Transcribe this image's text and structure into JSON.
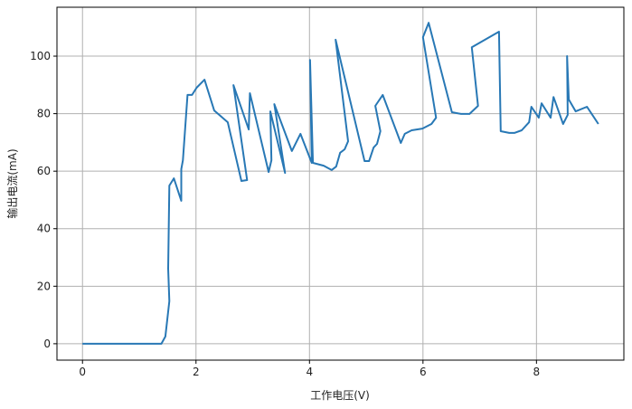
{
  "chart_data": {
    "type": "line",
    "title": "",
    "xlabel": "工作电压(V)",
    "ylabel": "输出电流(mA)",
    "xlim": [
      -0.45,
      9.54
    ],
    "ylim": [
      -5.7,
      117
    ],
    "xticks": [
      0,
      2,
      4,
      6,
      8
    ],
    "yticks": [
      0,
      20,
      40,
      60,
      80,
      100
    ],
    "grid": true,
    "line_color": "#2878b5",
    "grid_color": "#b0b0b0",
    "series": [
      {
        "x": [
          0,
          1.39,
          1.46,
          1.53,
          1.51,
          1.53,
          1.61,
          1.74,
          1.74,
          1.77,
          1.85,
          1.93,
          2.01,
          2.15,
          2.32,
          2.56,
          2.8,
          2.9,
          2.66,
          2.93,
          2.95,
          3.28,
          3.33,
          3.31,
          3.57,
          3.38,
          3.69,
          3.84,
          4.04,
          4.01,
          4.06,
          4.25,
          4.39,
          4.47,
          4.54,
          4.62,
          4.68,
          4.46,
          4.97,
          5.05,
          5.13,
          5.19,
          5.25,
          5.16,
          5.29,
          5.61,
          5.68,
          5.8,
          5.99,
          6.15,
          6.23,
          6.0,
          6.1,
          6.51,
          6.67,
          6.82,
          6.97,
          6.86,
          7.34,
          7.37,
          7.52,
          7.61,
          7.74,
          7.87,
          7.91,
          8.04,
          8.09,
          8.25,
          8.3,
          8.47,
          8.55,
          8.54,
          8.57,
          8.69,
          8.89,
          9.09
        ],
        "y": [
          0,
          0,
          2.5,
          14.8,
          26.1,
          55,
          57.5,
          49.7,
          60.7,
          63.8,
          86.5,
          86.5,
          89,
          91.8,
          81.1,
          77,
          56.6,
          56.9,
          89.9,
          74.5,
          87.1,
          59.7,
          63.8,
          80.8,
          59.4,
          83.3,
          67,
          73,
          62.9,
          98.7,
          62.9,
          61.9,
          60.4,
          61.6,
          66.4,
          67.6,
          70.4,
          105.7,
          63.5,
          63.5,
          68.2,
          69.5,
          73.9,
          82.7,
          86.5,
          69.8,
          73,
          74.2,
          74.8,
          76.4,
          78.6,
          106.6,
          111.6,
          80.5,
          79.9,
          79.9,
          82.7,
          103.1,
          108.5,
          73.9,
          73.3,
          73.3,
          74.2,
          77,
          82.4,
          78.6,
          83.6,
          78.6,
          85.8,
          76.4,
          79.6,
          100,
          84.9,
          80.8,
          82.4,
          76.4
        ]
      }
    ]
  }
}
